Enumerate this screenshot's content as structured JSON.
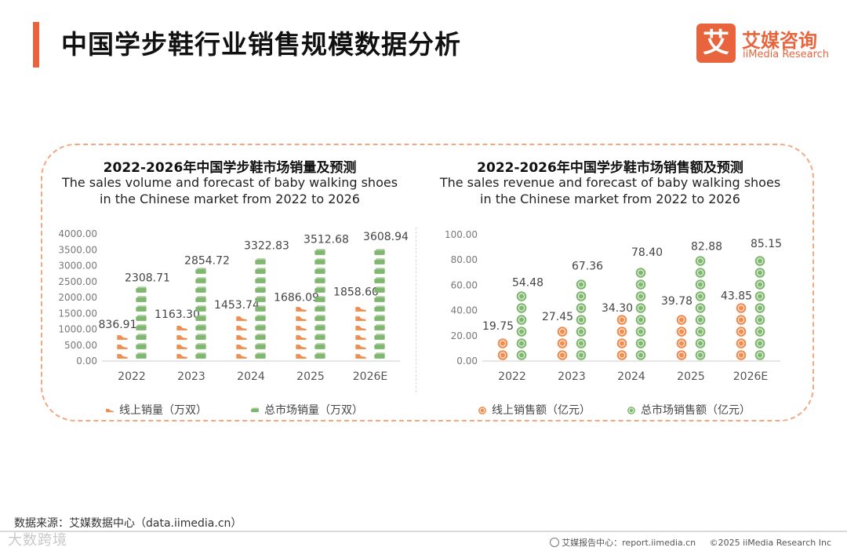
{
  "header": {
    "title": "中国学步鞋行业销售规模数据分析",
    "logo_mark": "艾",
    "logo_cn": "艾媒咨询",
    "logo_en": "iiMedia Research"
  },
  "colors": {
    "accent": "#e8643c",
    "online": "#ef8c4e",
    "total": "#7fb76f",
    "axis": "#cccccc",
    "panel_border": "#f2a880"
  },
  "chart_data": [
    {
      "type": "bar",
      "title": "2022-2026年中国学步鞋市场销量及预测",
      "subtitle_lines": [
        "The sales volume and forecast of baby walking shoes",
        "in the Chinese market from 2022 to 2026"
      ],
      "categories": [
        "2022",
        "2023",
        "2024",
        "2025",
        "2026E"
      ],
      "series": [
        {
          "name": "线上销量（万双）",
          "values": [
            836.91,
            1163.3,
            1453.74,
            1686.09,
            1858.6
          ],
          "labels": [
            "836.91",
            "1163.30",
            "1453.74",
            "1686.09",
            "1858.60"
          ],
          "icon": "shoe-icon"
        },
        {
          "name": "总市场销量（万双）",
          "values": [
            2308.71,
            2854.72,
            3322.83,
            3512.68,
            3608.94
          ],
          "labels": [
            "2308.71",
            "2854.72",
            "3322.83",
            "3512.68",
            "3608.94"
          ],
          "icon": "cash-icon"
        }
      ],
      "ylim": [
        0,
        4000
      ],
      "yticks": [
        "0.00",
        "500.00",
        "1000.00",
        "1500.00",
        "2000.00",
        "2500.00",
        "3000.00",
        "3500.00",
        "4000.00"
      ],
      "grid": false,
      "legend": "bottom"
    },
    {
      "type": "bar",
      "title": "2022-2026年中国学步鞋市场销售额及预测",
      "subtitle_lines": [
        "The sales revenue and forecast of baby walking shoes",
        "in the Chinese market from 2022 to 2026"
      ],
      "categories": [
        "2022",
        "2023",
        "2024",
        "2025",
        "2026E"
      ],
      "series": [
        {
          "name": "线上销售额（亿元）",
          "values": [
            19.75,
            27.45,
            34.3,
            39.78,
            43.85
          ],
          "labels": [
            "19.75",
            "27.45",
            "34.30",
            "39.78",
            "43.85"
          ],
          "icon": "coin-icon"
        },
        {
          "name": "总市场销售额（亿元）",
          "values": [
            54.48,
            67.36,
            78.4,
            82.88,
            85.15
          ],
          "labels": [
            "54.48",
            "67.36",
            "78.40",
            "82.88",
            "85.15"
          ],
          "icon": "coin-icon"
        }
      ],
      "ylim": [
        0,
        100
      ],
      "yticks": [
        "0.00",
        "20.00",
        "40.00",
        "60.00",
        "80.00",
        "100.00"
      ],
      "grid": false,
      "legend": "bottom"
    }
  ],
  "footer": {
    "source": "数据来源：艾媒数据中心（data.iimedia.cn）",
    "watermark": "大数跨境",
    "report_site": "艾媒报告中心：report.iimedia.cn",
    "copyright": "©2025  iiMedia Research  Inc"
  }
}
